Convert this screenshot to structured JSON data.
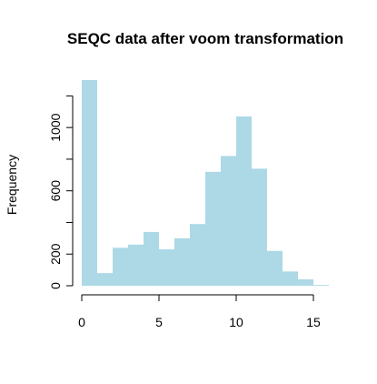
{
  "chart_data": {
    "type": "bar",
    "title": "SEQC data after voom transformation",
    "xlabel": "",
    "ylabel": "Frequency",
    "xlim": [
      0,
      16
    ],
    "ylim": [
      0,
      1300
    ],
    "x_ticks": [
      "0",
      "5",
      "10",
      "15"
    ],
    "y_ticks": [
      "0",
      "200",
      "600",
      "1000"
    ],
    "grid": false,
    "legend": "none",
    "bar_color": "#add8e6",
    "bins": [
      {
        "start": 0,
        "end": 1,
        "value": 1300
      },
      {
        "start": 1,
        "end": 2,
        "value": 80
      },
      {
        "start": 2,
        "end": 3,
        "value": 240
      },
      {
        "start": 3,
        "end": 4,
        "value": 260
      },
      {
        "start": 4,
        "end": 5,
        "value": 340
      },
      {
        "start": 5,
        "end": 6,
        "value": 230
      },
      {
        "start": 6,
        "end": 7,
        "value": 300
      },
      {
        "start": 7,
        "end": 8,
        "value": 390
      },
      {
        "start": 8,
        "end": 9,
        "value": 720
      },
      {
        "start": 9,
        "end": 10,
        "value": 820
      },
      {
        "start": 10,
        "end": 11,
        "value": 1070
      },
      {
        "start": 11,
        "end": 12,
        "value": 740
      },
      {
        "start": 12,
        "end": 13,
        "value": 220
      },
      {
        "start": 13,
        "end": 14,
        "value": 90
      },
      {
        "start": 14,
        "end": 15,
        "value": 40
      },
      {
        "start": 15,
        "end": 16,
        "value": 5
      }
    ]
  }
}
